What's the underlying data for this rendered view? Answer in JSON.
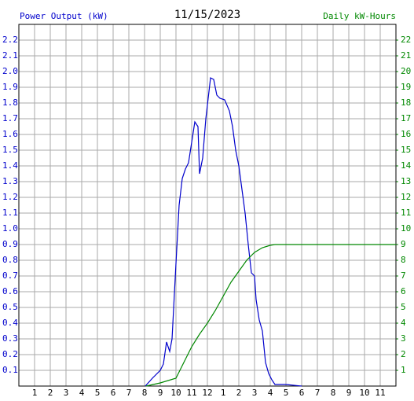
{
  "chart_data": {
    "type": "line",
    "title": "11/15/2023",
    "y_label": "Power Output (kW)",
    "y2_label": "Daily kW-Hours",
    "xlim": [
      0,
      24
    ],
    "xticks": [
      1,
      2,
      3,
      4,
      5,
      6,
      7,
      8,
      9,
      10,
      11,
      12,
      {
        "value": 13,
        "label": "1"
      },
      {
        "value": 14,
        "label": "2"
      },
      {
        "value": 15,
        "label": "3"
      },
      {
        "value": 16,
        "label": "4"
      },
      {
        "value": 17,
        "label": "5"
      },
      {
        "value": 18,
        "label": "6"
      },
      {
        "value": 19,
        "label": "7"
      },
      {
        "value": 20,
        "label": "8"
      },
      {
        "value": 21,
        "label": "9"
      },
      {
        "value": 22,
        "label": "10"
      },
      {
        "value": 23,
        "label": "11"
      }
    ],
    "ylim": [
      0,
      2.3
    ],
    "yticks": [
      0.1,
      0.2,
      0.3,
      0.4,
      0.5,
      0.6,
      0.7,
      0.8,
      0.9,
      {
        "value": 1,
        "label": "1.0"
      },
      1.1,
      1.2,
      1.3,
      1.4,
      1.5,
      1.6,
      1.7,
      1.8,
      1.9,
      {
        "value": 2,
        "label": "2.0"
      },
      2.1,
      2.2
    ],
    "y2lim": [
      0,
      23
    ],
    "y2ticks": [
      1,
      2,
      3,
      4,
      5,
      6,
      7,
      8,
      9,
      10,
      11,
      12,
      13,
      14,
      15,
      16,
      17,
      18,
      19,
      20,
      21,
      22
    ],
    "grid": true,
    "series": [
      {
        "name": "Power Output (kW)",
        "color": "#0000cc",
        "x": [
          8.05,
          8.5,
          9.0,
          9.2,
          9.4,
          9.6,
          9.75,
          10.0,
          10.2,
          10.4,
          10.6,
          10.8,
          11.0,
          11.2,
          11.4,
          11.5,
          11.7,
          11.9,
          12.2,
          12.4,
          12.6,
          12.8,
          13.1,
          13.4,
          13.6,
          13.8,
          14.0,
          14.2,
          14.4,
          14.6,
          14.8,
          15.0,
          15.1,
          15.3,
          15.5,
          15.7,
          15.9,
          16.1,
          16.3,
          17.0,
          18.0
        ],
        "values": [
          0,
          0.05,
          0.1,
          0.14,
          0.28,
          0.22,
          0.3,
          0.78,
          1.15,
          1.32,
          1.38,
          1.42,
          1.55,
          1.68,
          1.65,
          1.35,
          1.45,
          1.7,
          1.96,
          1.95,
          1.85,
          1.83,
          1.82,
          1.75,
          1.65,
          1.5,
          1.4,
          1.25,
          1.1,
          0.9,
          0.72,
          0.7,
          0.55,
          0.42,
          0.35,
          0.15,
          0.08,
          0.04,
          0.01,
          0.01,
          0
        ]
      },
      {
        "name": "Daily kW-Hours",
        "color": "#008800",
        "axis": "y2",
        "x": [
          8.1,
          9.0,
          10.0,
          10.5,
          11.0,
          11.5,
          12.0,
          12.5,
          13.0,
          13.5,
          14.0,
          14.5,
          15.0,
          15.5,
          16.0,
          16.3,
          24.0
        ],
        "values": [
          0,
          0.2,
          0.5,
          1.5,
          2.5,
          3.3,
          4.0,
          4.8,
          5.7,
          6.6,
          7.3,
          8.0,
          8.5,
          8.8,
          8.95,
          9.0,
          9.0
        ]
      }
    ]
  }
}
